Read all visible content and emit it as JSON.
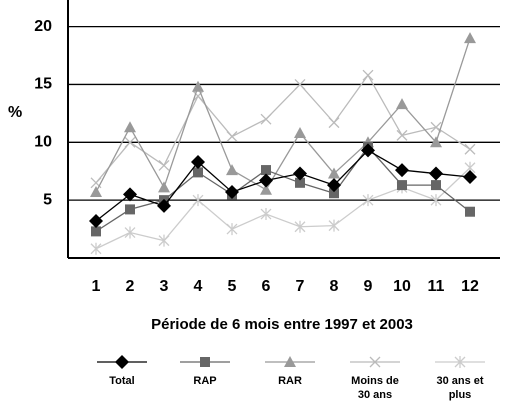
{
  "chart_data": {
    "type": "line",
    "x_label": "Période de 6 mois entre 1997 et 2003",
    "y_label": "%",
    "categories": [
      "1",
      "2",
      "3",
      "4",
      "5",
      "6",
      "7",
      "8",
      "9",
      "10",
      "11",
      "12"
    ],
    "ylim": [
      0,
      22.3
    ],
    "yticks": [
      5,
      10,
      15,
      20
    ],
    "grid": true,
    "series": [
      {
        "name": "Total",
        "color": "#000000",
        "marker": "diamond",
        "values": [
          3.2,
          5.5,
          4.5,
          8.3,
          5.7,
          6.7,
          7.3,
          6.3,
          9.3,
          7.6,
          7.3,
          7.0
        ]
      },
      {
        "name": "RAP",
        "color": "#666666",
        "marker": "square",
        "values": [
          2.3,
          4.2,
          5.0,
          7.4,
          5.5,
          7.6,
          6.5,
          5.6,
          9.6,
          6.3,
          6.3,
          4.0
        ]
      },
      {
        "name": "RAR",
        "color": "#999999",
        "marker": "triangle",
        "values": [
          5.7,
          11.3,
          6.1,
          14.8,
          7.6,
          5.9,
          10.8,
          7.3,
          10.0,
          13.3,
          10.0,
          19.0
        ]
      },
      {
        "name": "Moins de 30 ans",
        "color": "#bbbbbb",
        "marker": "x",
        "values": [
          6.5,
          10.0,
          8.0,
          14.0,
          10.5,
          12.0,
          15.0,
          11.7,
          15.8,
          10.6,
          11.3,
          9.4
        ]
      },
      {
        "name": "30 ans et plus",
        "color": "#cccccc",
        "marker": "star",
        "values": [
          0.8,
          2.2,
          1.5,
          5.0,
          2.5,
          3.8,
          2.7,
          2.8,
          5.0,
          6.1,
          5.0,
          7.8
        ]
      }
    ]
  }
}
